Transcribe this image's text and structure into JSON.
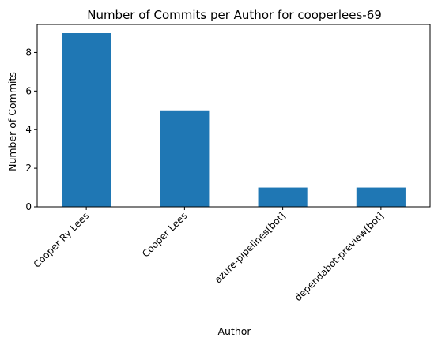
{
  "chart_data": {
    "type": "bar",
    "title": "Number of Commits per Author for cooperlees-69",
    "xlabel": "Author",
    "ylabel": "Number of Commits",
    "categories": [
      "Cooper Ry Lees",
      "Cooper Lees",
      "azure-pipelines[bot]",
      "dependabot-preview[bot]"
    ],
    "values": [
      9,
      5,
      1,
      1
    ],
    "ylim": [
      0,
      9.45
    ],
    "yticks": [
      0,
      2,
      4,
      6,
      8
    ],
    "bar_color": "#1f77b4",
    "grid": false,
    "legend": false
  }
}
